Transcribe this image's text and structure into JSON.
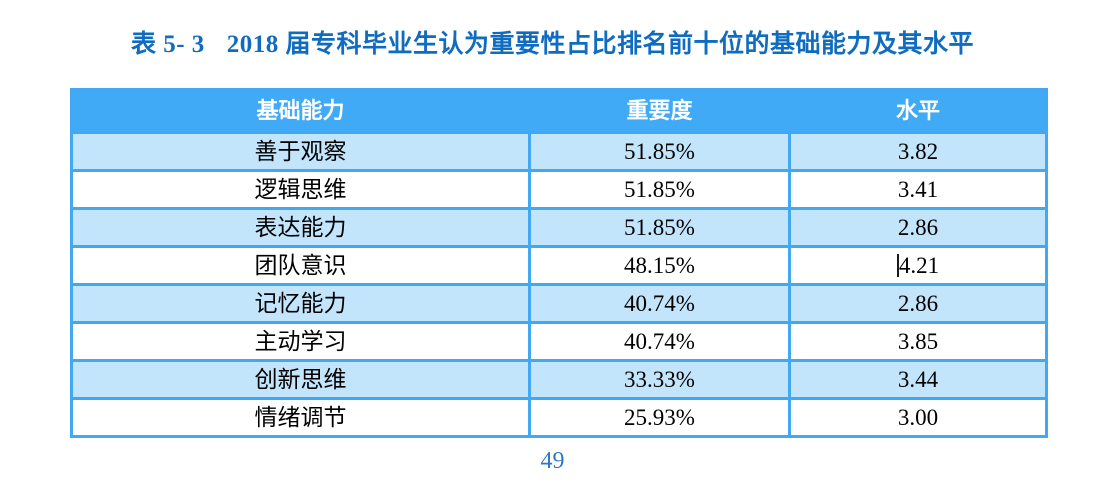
{
  "document": {
    "caption_label": "表 5- 3",
    "caption_text": "2018 届专科毕业生认为重要性占比排名前十位的基础能力及其水平",
    "page_number": "49"
  },
  "table": {
    "columns": [
      "基础能力",
      "重要度",
      "水平"
    ],
    "rows": [
      {
        "ability": "善于观察",
        "importance": "51.85%",
        "level": "3.82"
      },
      {
        "ability": "逻辑思维",
        "importance": "51.85%",
        "level": "3.41"
      },
      {
        "ability": "表达能力",
        "importance": "51.85%",
        "level": "2.86"
      },
      {
        "ability": "团队意识",
        "importance": "48.15%",
        "level": "4.21"
      },
      {
        "ability": "记忆能力",
        "importance": "40.74%",
        "level": "2.86"
      },
      {
        "ability": "主动学习",
        "importance": "40.74%",
        "level": "3.85"
      },
      {
        "ability": "创新思维",
        "importance": "33.33%",
        "level": "3.44"
      },
      {
        "ability": "情绪调节",
        "importance": "25.93%",
        "level": "3.00"
      }
    ]
  },
  "cursor": {
    "row_index": 3,
    "column": "level"
  },
  "colors": {
    "header_bg": "#41aaf7",
    "row_alt_bg": "#c3e5fb",
    "table_border": "#42a8f2",
    "title_color": "#0f6cbe",
    "page_number_color": "#2e79c2",
    "header_text": "#ffffff",
    "cell_text": "#000000"
  },
  "chart_data": {
    "type": "table",
    "title": "表 5- 3 2018 届专科毕业生认为重要性占比排名前十位的基础能力及其水平",
    "columns": [
      "基础能力",
      "重要度",
      "水平"
    ],
    "rows": [
      [
        "善于观察",
        "51.85%",
        "3.82"
      ],
      [
        "逻辑思维",
        "51.85%",
        "3.41"
      ],
      [
        "表达能力",
        "51.85%",
        "2.86"
      ],
      [
        "团队意识",
        "48.15%",
        "4.21"
      ],
      [
        "记忆能力",
        "40.74%",
        "2.86"
      ],
      [
        "主动学习",
        "40.74%",
        "3.85"
      ],
      [
        "创新思维",
        "33.33%",
        "3.44"
      ],
      [
        "情绪调节",
        "25.93%",
        "3.00"
      ]
    ]
  }
}
